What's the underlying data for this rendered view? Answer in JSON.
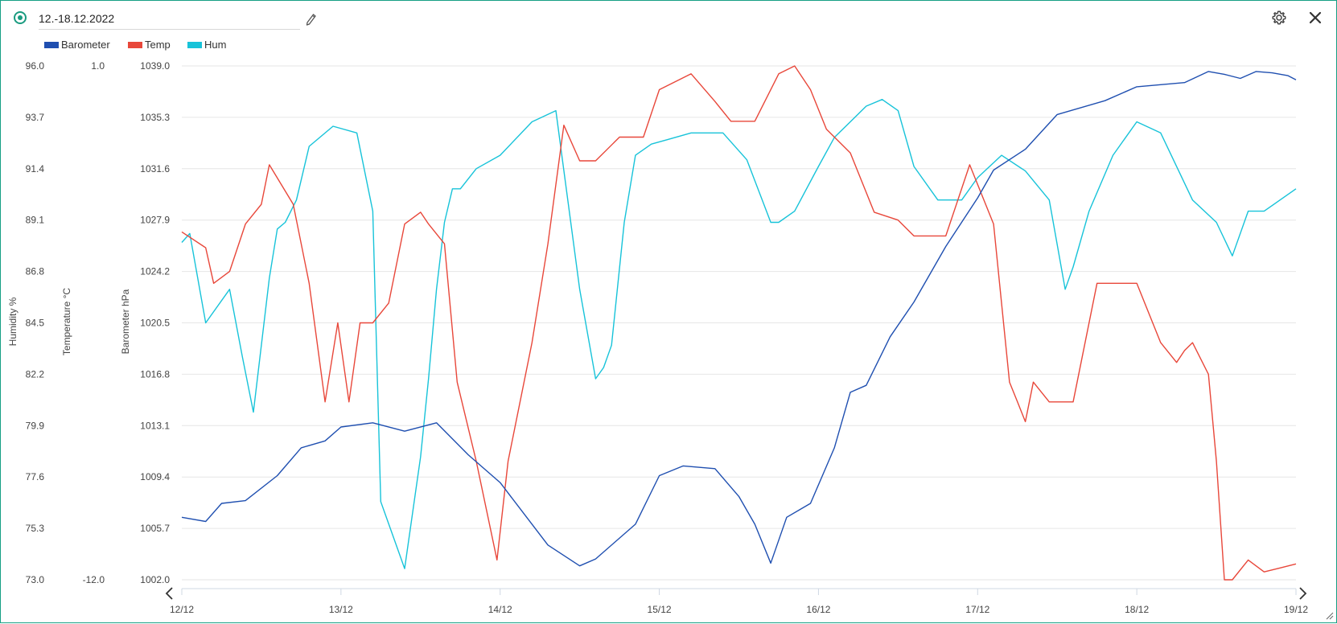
{
  "header": {
    "date_range": "12.-18.12.2022",
    "icons": {
      "status": "status-dot-icon",
      "edit": "pencil-icon",
      "settings": "gear-icon",
      "close": "close-icon"
    }
  },
  "legend": [
    {
      "name": "Barometer",
      "color": "#1f4fb0"
    },
    {
      "name": "Temp",
      "color": "#e8473a"
    },
    {
      "name": "Hum",
      "color": "#17c3d9"
    }
  ],
  "chart_data": {
    "type": "line",
    "grid": true,
    "legend_position": "top-left",
    "x_ticks": [
      "12/12",
      "13/12",
      "14/12",
      "15/12",
      "16/12",
      "17/12",
      "18/12",
      "19/12"
    ],
    "xlim_days": [
      0,
      7
    ],
    "axes": {
      "humidity": {
        "label": "Humidity %",
        "ticks": [
          "96.0",
          "93.7",
          "91.4",
          "89.1",
          "86.8",
          "84.5",
          "82.2",
          "79.9",
          "77.6",
          "75.3",
          "73.0"
        ],
        "range": [
          73.0,
          96.0
        ]
      },
      "temperature": {
        "label": "Temperature °C",
        "ticks": [
          "1.0",
          "-12.0"
        ],
        "range": [
          -12.0,
          1.0
        ]
      },
      "barometer": {
        "label": "Barometer hPa",
        "ticks": [
          "1039.0",
          "1035.3",
          "1031.6",
          "1027.9",
          "1024.2",
          "1020.5",
          "1016.8",
          "1013.1",
          "1009.4",
          "1005.7",
          "1002.0"
        ],
        "range": [
          1002.0,
          1039.0
        ]
      }
    },
    "series": [
      {
        "name": "Barometer",
        "axis": "barometer",
        "color": "#1f4fb0",
        "x": [
          0,
          0.15,
          0.25,
          0.4,
          0.6,
          0.75,
          0.9,
          1.0,
          1.2,
          1.4,
          1.6,
          1.8,
          2.0,
          2.3,
          2.5,
          2.6,
          2.85,
          3.0,
          3.15,
          3.35,
          3.5,
          3.6,
          3.7,
          3.8,
          3.95,
          4.1,
          4.2,
          4.3,
          4.45,
          4.6,
          4.8,
          5.0,
          5.1,
          5.3,
          5.5,
          5.8,
          6.0,
          6.3,
          6.45,
          6.55,
          6.65,
          6.75,
          6.85,
          6.95,
          7.0
        ],
        "y": [
          1006.5,
          1006.2,
          1007.5,
          1007.7,
          1009.5,
          1011.5,
          1012.0,
          1013.0,
          1013.3,
          1012.7,
          1013.3,
          1011.0,
          1009.0,
          1004.5,
          1003.0,
          1003.5,
          1006.0,
          1009.5,
          1010.2,
          1010.0,
          1008.0,
          1006.0,
          1003.2,
          1006.5,
          1007.5,
          1011.5,
          1015.5,
          1016.0,
          1019.5,
          1022.0,
          1026.0,
          1029.5,
          1031.5,
          1033.0,
          1035.5,
          1036.5,
          1037.5,
          1037.8,
          1038.6,
          1038.4,
          1038.1,
          1038.6,
          1038.5,
          1038.3,
          1038.0
        ]
      },
      {
        "name": "Temp",
        "axis": "temperature",
        "color": "#e8473a",
        "x": [
          0,
          0.15,
          0.2,
          0.3,
          0.4,
          0.5,
          0.55,
          0.7,
          0.8,
          0.9,
          0.98,
          1.05,
          1.12,
          1.2,
          1.3,
          1.4,
          1.5,
          1.55,
          1.65,
          1.73,
          1.85,
          1.98,
          2.05,
          2.1,
          2.2,
          2.3,
          2.4,
          2.5,
          2.6,
          2.75,
          2.9,
          3.0,
          3.2,
          3.35,
          3.45,
          3.6,
          3.75,
          3.85,
          3.95,
          4.05,
          4.2,
          4.35,
          4.5,
          4.6,
          4.8,
          4.95,
          5.1,
          5.2,
          5.25,
          5.3,
          5.35,
          5.45,
          5.6,
          5.75,
          6.0,
          6.15,
          6.25,
          6.3,
          6.35,
          6.45,
          6.5,
          6.55,
          6.6,
          6.7,
          6.8,
          6.9,
          7.0
        ],
        "y": [
          -3.2,
          -3.6,
          -4.5,
          -4.2,
          -3.0,
          -2.5,
          -1.5,
          -2.5,
          -4.5,
          -7.5,
          -5.5,
          -7.5,
          -5.5,
          -5.5,
          -5.0,
          -3.0,
          -2.7,
          -3.0,
          -3.5,
          -7.0,
          -9.0,
          -11.5,
          -9.0,
          -8.0,
          -6.0,
          -3.5,
          -0.5,
          -1.4,
          -1.4,
          -0.8,
          -0.8,
          0.4,
          0.8,
          0.1,
          -0.4,
          -0.4,
          0.8,
          1.0,
          0.4,
          -0.6,
          -1.2,
          -2.7,
          -2.9,
          -3.3,
          -3.3,
          -1.5,
          -3.0,
          -7.0,
          -7.5,
          -8.0,
          -7.0,
          -7.5,
          -7.5,
          -4.5,
          -4.5,
          -6.0,
          -6.5,
          -6.2,
          -6.0,
          -6.8,
          -9.0,
          -12.0,
          -12.0,
          -11.5,
          -11.8,
          -11.7,
          -11.6
        ]
      },
      {
        "name": "Hum",
        "axis": "humidity",
        "color": "#17c3d9",
        "x": [
          0,
          0.05,
          0.15,
          0.3,
          0.38,
          0.45,
          0.55,
          0.6,
          0.65,
          0.72,
          0.8,
          0.95,
          1.1,
          1.2,
          1.25,
          1.4,
          1.5,
          1.55,
          1.6,
          1.65,
          1.7,
          1.75,
          1.85,
          2.0,
          2.2,
          2.35,
          2.5,
          2.6,
          2.65,
          2.7,
          2.78,
          2.85,
          2.95,
          3.05,
          3.2,
          3.4,
          3.55,
          3.7,
          3.75,
          3.85,
          4.0,
          4.1,
          4.2,
          4.3,
          4.4,
          4.5,
          4.6,
          4.75,
          4.9,
          5.0,
          5.15,
          5.3,
          5.45,
          5.55,
          5.6,
          5.7,
          5.85,
          6.0,
          6.15,
          6.35,
          6.5,
          6.6,
          6.7,
          6.8,
          6.9,
          7.0
        ],
        "y": [
          88.1,
          88.5,
          84.5,
          86.0,
          83.0,
          80.5,
          86.5,
          88.7,
          89.0,
          90.0,
          92.4,
          93.3,
          93.0,
          89.5,
          76.5,
          73.5,
          78.5,
          82.0,
          86.0,
          89.0,
          90.5,
          90.5,
          91.4,
          92.0,
          93.5,
          94.0,
          86.0,
          82.0,
          82.5,
          83.5,
          89.0,
          92.0,
          92.5,
          92.7,
          93.0,
          93.0,
          91.8,
          89.0,
          89.0,
          89.5,
          91.5,
          92.8,
          93.5,
          94.2,
          94.5,
          94.0,
          91.5,
          90.0,
          90.0,
          91.0,
          92.0,
          91.3,
          90.0,
          86.0,
          87.0,
          89.5,
          92.0,
          93.5,
          93.0,
          90.0,
          89.0,
          87.5,
          89.5,
          89.5,
          90.0,
          90.5
        ]
      }
    ]
  }
}
